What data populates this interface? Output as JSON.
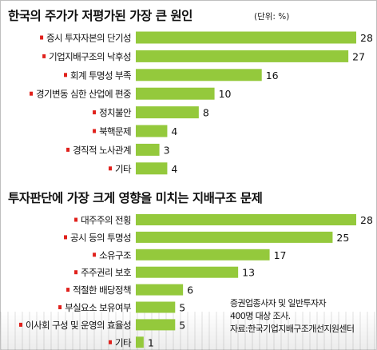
{
  "chart_data": [
    {
      "type": "bar",
      "orientation": "horizontal",
      "title": "한국의 주가가 저평가된 가장 큰 원인",
      "unit_label": "(단위: %)",
      "categories": [
        "증시 투자자본의 단기성",
        "기업지배구조의 낙후성",
        "회계 투명성 부족",
        "경기변동 심한 산업에 편중",
        "정치불안",
        "북핵문제",
        "경직적 노사관계",
        "기타"
      ],
      "values": [
        28,
        27,
        16,
        10,
        8,
        4,
        3,
        4
      ],
      "xlim": [
        0,
        28
      ],
      "bar_color": "#94c93c",
      "marker_color": "#e0201b"
    },
    {
      "type": "bar",
      "orientation": "horizontal",
      "title": "투자판단에 가장 크게 영향을 미치는 지배구조 문제",
      "categories": [
        "대주주의 전횡",
        "공시 등의 투명성",
        "소유구조",
        "주주권리 보호",
        "적절한 배당정책",
        "부실요소 보유여부",
        "이사회 구성 및 운영의 효율성",
        "기타"
      ],
      "values": [
        28,
        25,
        17,
        13,
        6,
        5,
        5,
        1
      ],
      "xlim": [
        0,
        28
      ],
      "bar_color": "#94c93c",
      "marker_color": "#e0201b"
    }
  ],
  "footnote": {
    "line1": "증권업종사자 및 일반투자자",
    "line2": "400명 대상 조사.",
    "line3": "자료:한국기업지배구조개선지원센터"
  }
}
